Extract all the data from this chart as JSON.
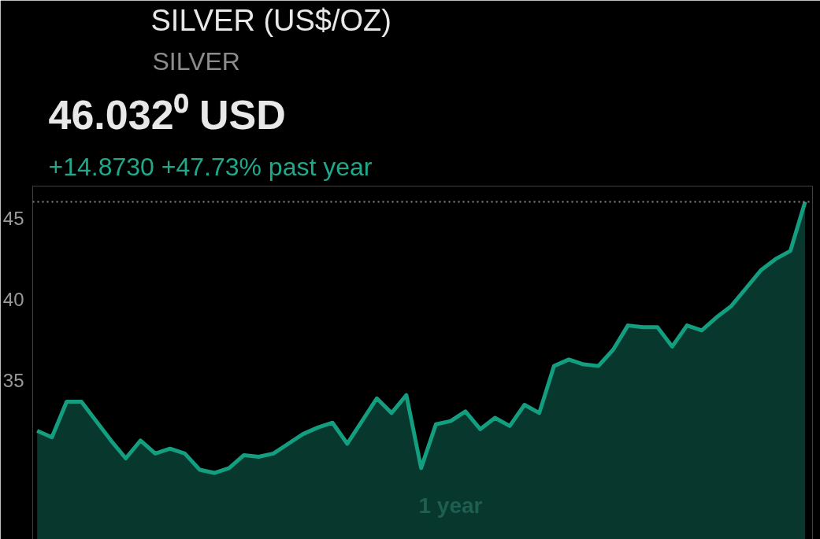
{
  "chart_data": {
    "type": "area",
    "title": "SILVER (US$/OZ)",
    "subtitle": "SILVER",
    "xlabel": "1 year",
    "annotations": [
      "46.032⁰ USD",
      "+14.8730 +47.73% past year"
    ],
    "categories": [
      null,
      null,
      null,
      null,
      null,
      null,
      null,
      null,
      null,
      null,
      null,
      null,
      null,
      null,
      null,
      null,
      null,
      null,
      null,
      null,
      null,
      null,
      null,
      null,
      null,
      null,
      null,
      null,
      null,
      null,
      null,
      null,
      null,
      null,
      null,
      null,
      null,
      null,
      null,
      null,
      null,
      null,
      null,
      null,
      null,
      null,
      null,
      null,
      null,
      null,
      null,
      null,
      null
    ],
    "series": [
      {
        "color": "#139e80",
        "values": [
          31.9,
          31.5,
          33.7,
          33.7,
          32.5,
          31.3,
          30.2,
          31.3,
          30.5,
          30.8,
          30.5,
          29.5,
          29.3,
          29.6,
          30.4,
          30.3,
          30.5,
          31.1,
          31.7,
          32.1,
          32.4,
          31.1,
          32.5,
          33.9,
          33.0,
          34.1,
          29.6,
          32.3,
          32.5,
          33.1,
          32.0,
          32.7,
          32.2,
          33.5,
          33.0,
          35.9,
          36.3,
          36.0,
          35.9,
          36.9,
          38.4,
          38.3,
          38.3,
          37.1,
          38.4,
          38.1,
          38.9,
          39.6,
          40.7,
          41.8,
          42.5,
          43.0,
          46.03
        ]
      }
    ],
    "ylim": [
      25.2,
      47.0
    ],
    "yticks": [
      35,
      40,
      45
    ],
    "grid": false,
    "marker": "none",
    "line_style": "solid",
    "ref_lines": [
      {
        "axis": "y",
        "value": 46.03,
        "color": "#8a8a8a",
        "line_style": "dotted"
      }
    ]
  }
}
